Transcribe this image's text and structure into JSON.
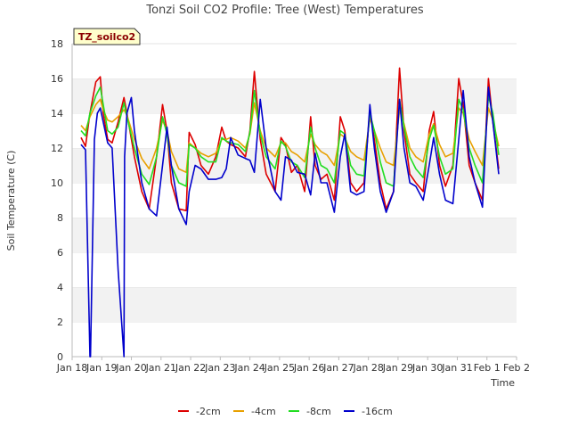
{
  "chart_data": {
    "type": "line",
    "title": "Tonzi Soil CO2 Profile: Tree (West) Temperatures",
    "xlabel": "Time",
    "ylabel": "Soil Temperature (C)",
    "badge": "TZ_soilco2",
    "ylim": [
      0,
      18
    ],
    "yticks": [
      0,
      2,
      4,
      6,
      8,
      10,
      12,
      14,
      16,
      18
    ],
    "xlim": [
      0,
      15
    ],
    "xticks": [
      {
        "x": 0,
        "label": "Jan 18"
      },
      {
        "x": 1,
        "label": "Jan 19"
      },
      {
        "x": 2,
        "label": "Jan 20"
      },
      {
        "x": 3,
        "label": "Jan 21"
      },
      {
        "x": 4,
        "label": "Jan 22"
      },
      {
        "x": 5,
        "label": "Jan 23"
      },
      {
        "x": 6,
        "label": "Jan 24"
      },
      {
        "x": 7,
        "label": "Jan 25"
      },
      {
        "x": 8,
        "label": "Jan 26"
      },
      {
        "x": 9,
        "label": "Jan 27"
      },
      {
        "x": 10,
        "label": "Jan 28"
      },
      {
        "x": 11,
        "label": "Jan 29"
      },
      {
        "x": 12,
        "label": "Jan 30"
      },
      {
        "x": 13,
        "label": "Jan 31"
      },
      {
        "x": 14,
        "label": "Feb 1"
      },
      {
        "x": 15,
        "label": "Feb 2"
      }
    ],
    "grid": "horizontal bands",
    "legend_position": "bottom",
    "series": [
      {
        "name": "-2cm",
        "color": "#dd0000",
        "x": [
          0.3,
          0.45,
          0.6,
          0.8,
          0.95,
          1.05,
          1.2,
          1.35,
          1.55,
          1.75,
          1.85,
          2.1,
          2.35,
          2.6,
          2.85,
          3.05,
          3.2,
          3.35,
          3.6,
          3.85,
          3.95,
          4.15,
          4.35,
          4.6,
          4.85,
          5.05,
          5.2,
          5.35,
          5.6,
          5.85,
          6.0,
          6.15,
          6.35,
          6.55,
          6.85,
          7.05,
          7.2,
          7.4,
          7.6,
          7.85,
          8.05,
          8.2,
          8.4,
          8.6,
          8.85,
          9.05,
          9.2,
          9.4,
          9.6,
          9.85,
          10.05,
          10.2,
          10.4,
          10.6,
          10.85,
          11.05,
          11.2,
          11.4,
          11.6,
          11.85,
          12.05,
          12.2,
          12.4,
          12.6,
          12.85,
          13.05,
          13.2,
          13.4,
          13.6,
          13.85,
          14.05,
          14.2,
          14.4
        ],
        "y": [
          12.6,
          12.1,
          14.0,
          15.8,
          16.1,
          14.0,
          12.5,
          12.3,
          13.5,
          14.9,
          14.0,
          11.5,
          9.5,
          8.5,
          11.5,
          14.5,
          13.0,
          10.0,
          8.5,
          8.4,
          12.9,
          12.2,
          11.0,
          10.5,
          11.5,
          13.2,
          12.4,
          12.2,
          12.0,
          11.5,
          13.0,
          16.4,
          12.5,
          10.5,
          9.5,
          12.6,
          12.2,
          10.6,
          11.0,
          9.5,
          13.8,
          11.0,
          10.2,
          10.5,
          9.0,
          13.8,
          13.0,
          10.0,
          9.5,
          10.0,
          14.2,
          12.5,
          10.0,
          8.5,
          9.5,
          16.6,
          13.0,
          10.5,
          10.0,
          9.5,
          13.0,
          14.1,
          11.0,
          9.8,
          11.0,
          16.0,
          14.5,
          11.0,
          10.0,
          9.0,
          16.0,
          13.5,
          10.8
        ]
      },
      {
        "name": "-4cm",
        "color": "#e8a000",
        "x": [
          0.3,
          0.45,
          0.6,
          0.8,
          0.95,
          1.05,
          1.2,
          1.35,
          1.55,
          1.75,
          1.85,
          2.1,
          2.35,
          2.6,
          2.85,
          3.05,
          3.2,
          3.35,
          3.6,
          3.85,
          3.95,
          4.15,
          4.35,
          4.6,
          4.85,
          5.05,
          5.2,
          5.35,
          5.6,
          5.85,
          6.0,
          6.15,
          6.35,
          6.55,
          6.85,
          7.05,
          7.2,
          7.4,
          7.6,
          7.85,
          8.05,
          8.2,
          8.4,
          8.6,
          8.85,
          9.05,
          9.2,
          9.4,
          9.6,
          9.85,
          10.05,
          10.2,
          10.4,
          10.6,
          10.85,
          11.05,
          11.2,
          11.4,
          11.6,
          11.85,
          12.05,
          12.2,
          12.4,
          12.6,
          12.85,
          13.05,
          13.2,
          13.4,
          13.6,
          13.85,
          14.05,
          14.2,
          14.4
        ],
        "y": [
          13.3,
          13.0,
          13.8,
          14.5,
          14.8,
          14.2,
          13.6,
          13.5,
          13.8,
          14.2,
          13.9,
          12.5,
          11.4,
          10.8,
          12.0,
          13.6,
          13.0,
          11.8,
          10.8,
          10.6,
          12.3,
          12.0,
          11.7,
          11.5,
          11.7,
          12.5,
          12.5,
          12.6,
          12.4,
          12.0,
          12.8,
          14.6,
          13.0,
          12.0,
          11.5,
          12.3,
          12.3,
          11.8,
          11.6,
          11.2,
          12.8,
          12.2,
          11.8,
          11.6,
          11.0,
          12.8,
          12.6,
          11.8,
          11.5,
          11.3,
          13.7,
          13.0,
          12.0,
          11.2,
          11.0,
          14.2,
          13.4,
          12.0,
          11.5,
          11.2,
          12.8,
          13.4,
          12.2,
          11.5,
          11.7,
          14.3,
          14.0,
          12.5,
          11.8,
          11.0,
          14.3,
          13.6,
          12.1
        ]
      },
      {
        "name": "-8cm",
        "color": "#22dd22",
        "x": [
          0.3,
          0.45,
          0.6,
          0.8,
          0.95,
          1.05,
          1.2,
          1.35,
          1.55,
          1.75,
          1.85,
          2.1,
          2.35,
          2.6,
          2.85,
          3.05,
          3.2,
          3.35,
          3.6,
          3.85,
          3.95,
          4.15,
          4.35,
          4.6,
          4.85,
          5.05,
          5.2,
          5.35,
          5.6,
          5.85,
          6.0,
          6.15,
          6.35,
          6.55,
          6.85,
          7.05,
          7.2,
          7.4,
          7.6,
          7.85,
          8.05,
          8.2,
          8.4,
          8.6,
          8.85,
          9.05,
          9.2,
          9.4,
          9.6,
          9.85,
          10.05,
          10.2,
          10.4,
          10.6,
          10.85,
          11.05,
          11.2,
          11.4,
          11.6,
          11.85,
          12.05,
          12.2,
          12.4,
          12.6,
          12.85,
          13.05,
          13.2,
          13.4,
          13.6,
          13.85,
          14.05,
          14.2,
          14.4
        ],
        "y": [
          13.0,
          12.7,
          14.0,
          15.0,
          15.5,
          14.5,
          13.0,
          12.8,
          13.2,
          14.6,
          13.8,
          12.0,
          10.5,
          9.9,
          11.5,
          13.8,
          12.8,
          11.0,
          10.0,
          9.8,
          12.2,
          12.0,
          11.5,
          11.2,
          11.2,
          12.6,
          12.4,
          12.3,
          12.2,
          11.8,
          12.9,
          15.3,
          12.8,
          11.5,
          10.8,
          12.4,
          12.1,
          11.2,
          11.0,
          10.3,
          13.2,
          12.0,
          11.0,
          10.8,
          10.0,
          13.0,
          12.8,
          11.0,
          10.5,
          10.4,
          14.0,
          13.0,
          11.2,
          10.0,
          9.8,
          14.8,
          13.2,
          11.5,
          10.8,
          10.3,
          12.5,
          13.3,
          11.5,
          10.5,
          10.8,
          14.8,
          14.2,
          12.0,
          11.0,
          10.0,
          15.0,
          14.0,
          11.6
        ]
      },
      {
        "name": "-16cm",
        "color": "#0000cc",
        "x": [
          0.3,
          0.45,
          0.6,
          0.62,
          0.75,
          0.85,
          0.95,
          1.05,
          1.2,
          1.35,
          1.55,
          1.75,
          1.77,
          1.85,
          2.0,
          2.1,
          2.35,
          2.6,
          2.85,
          3.05,
          3.2,
          3.35,
          3.6,
          3.85,
          3.95,
          4.15,
          4.35,
          4.6,
          4.85,
          5.05,
          5.2,
          5.35,
          5.6,
          5.85,
          6.0,
          6.15,
          6.35,
          6.55,
          6.85,
          7.05,
          7.2,
          7.4,
          7.6,
          7.85,
          8.05,
          8.2,
          8.4,
          8.6,
          8.85,
          9.05,
          9.2,
          9.4,
          9.6,
          9.85,
          10.05,
          10.2,
          10.4,
          10.6,
          10.85,
          11.05,
          11.2,
          11.4,
          11.6,
          11.85,
          12.05,
          12.2,
          12.4,
          12.6,
          12.85,
          13.05,
          13.2,
          13.4,
          13.6,
          13.85,
          14.05,
          14.2,
          14.4
        ],
        "y": [
          12.2,
          11.9,
          0.0,
          0.0,
          12.5,
          14.0,
          14.3,
          13.5,
          12.3,
          12.0,
          5.0,
          0.0,
          11.5,
          14.0,
          14.9,
          13.0,
          10.0,
          8.5,
          8.1,
          11.0,
          13.2,
          11.0,
          8.5,
          7.6,
          9.5,
          11.0,
          10.8,
          10.2,
          10.2,
          10.3,
          10.8,
          12.6,
          11.6,
          11.4,
          11.3,
          10.6,
          14.8,
          12.0,
          9.5,
          9.0,
          11.5,
          11.3,
          10.6,
          10.5,
          9.3,
          11.7,
          10.0,
          10.0,
          8.3,
          11.5,
          12.8,
          9.5,
          9.3,
          9.5,
          14.5,
          12.0,
          9.5,
          8.3,
          9.5,
          14.8,
          12.0,
          10.0,
          9.8,
          9.0,
          11.0,
          12.6,
          10.5,
          9.0,
          8.8,
          12.5,
          15.3,
          11.5,
          10.0,
          8.6,
          15.5,
          13.5,
          10.5
        ]
      }
    ]
  }
}
